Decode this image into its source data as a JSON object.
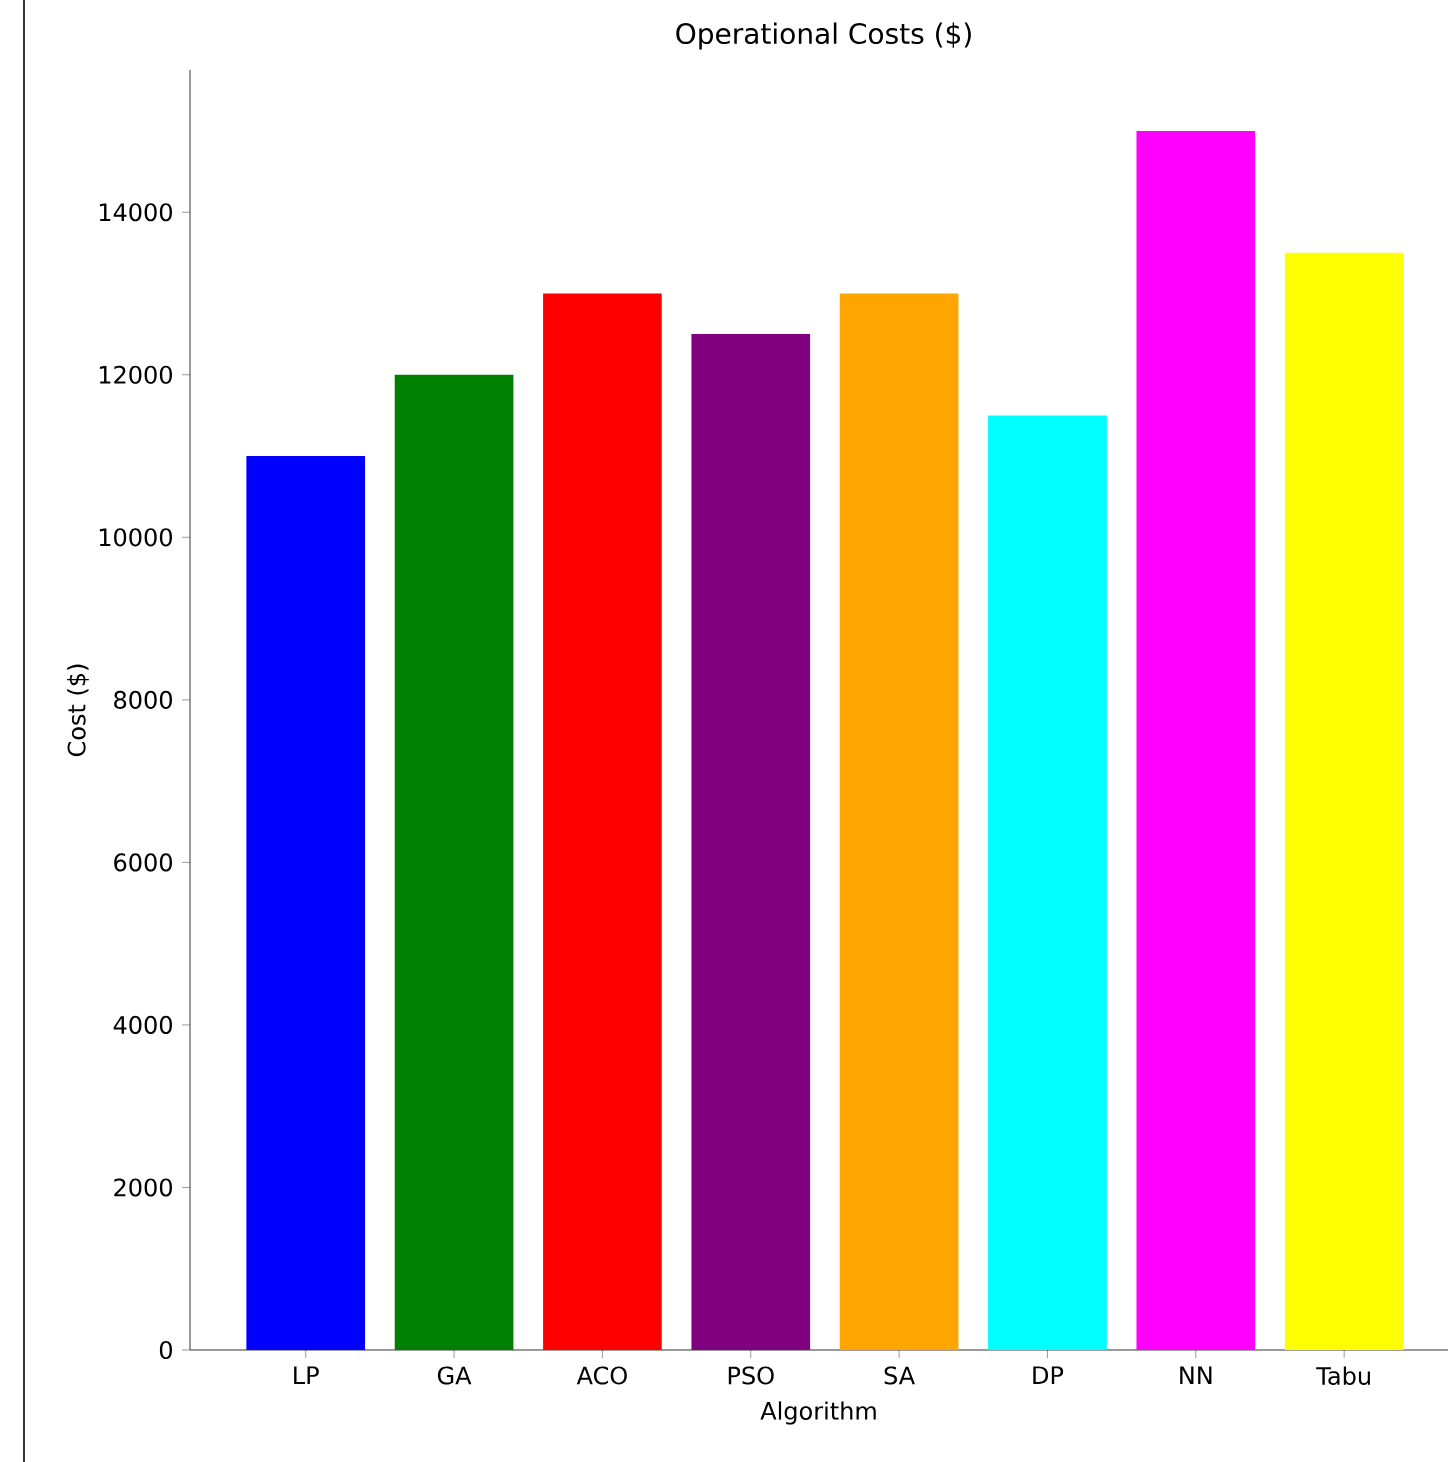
{
  "chart_data": {
    "type": "bar",
    "title": "Operational Costs ($)",
    "xlabel": "Algorithm",
    "ylabel": "Cost ($)",
    "categories": [
      "LP",
      "GA",
      "ACO",
      "PSO",
      "SA",
      "DP",
      "NN",
      "Tabu"
    ],
    "values": [
      11000,
      12000,
      13000,
      12500,
      13000,
      11500,
      15000,
      13500
    ],
    "colors": [
      "#0000ff",
      "#008000",
      "#ff0000",
      "#800080",
      "#ffa500",
      "#00ffff",
      "#ff00ff",
      "#ffff00"
    ],
    "ylim": [
      0,
      15750
    ],
    "yticks": [
      0,
      2000,
      4000,
      6000,
      8000,
      10000,
      12000,
      14000
    ]
  }
}
